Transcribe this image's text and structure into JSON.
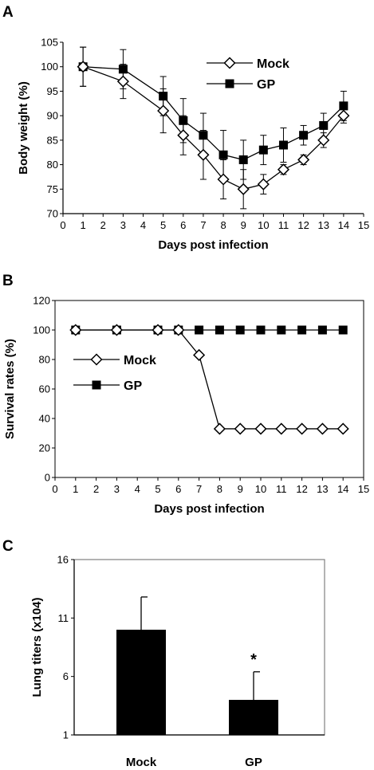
{
  "chart_data": [
    {
      "panel": "A",
      "type": "line",
      "xlabel": "Days post infection",
      "ylabel": "Body weight (%)",
      "xlim": [
        0,
        15
      ],
      "ylim": [
        70,
        105
      ],
      "xticks": [
        0,
        1,
        2,
        3,
        4,
        5,
        6,
        7,
        8,
        9,
        10,
        11,
        12,
        13,
        14,
        15
      ],
      "yticks": [
        70,
        75,
        80,
        85,
        90,
        95,
        100,
        105
      ],
      "legend_position": "top-right",
      "series": [
        {
          "name": "Mock",
          "marker": "open-diamond",
          "x": [
            1,
            3,
            5,
            6,
            7,
            8,
            9,
            10,
            11,
            12,
            13,
            14
          ],
          "y": [
            100,
            97,
            91,
            86,
            82,
            77,
            75,
            76,
            79,
            81,
            85,
            90
          ],
          "error": [
            4,
            3.5,
            4.5,
            4,
            5,
            4,
            4,
            2,
            1,
            1,
            1.5,
            1.5
          ]
        },
        {
          "name": "GP",
          "marker": "filled-square",
          "x": [
            1,
            3,
            5,
            6,
            7,
            8,
            9,
            10,
            11,
            12,
            13,
            14
          ],
          "y": [
            100,
            99.5,
            94,
            89,
            86,
            82,
            81,
            83,
            84,
            86,
            88,
            92
          ],
          "error": [
            4,
            4,
            4,
            4.5,
            4.5,
            5,
            4,
            3,
            3.5,
            2,
            2.5,
            3
          ]
        }
      ]
    },
    {
      "panel": "B",
      "type": "line",
      "xlabel": "Days post infection",
      "ylabel": "Survival rates (%)",
      "xlim": [
        0,
        15
      ],
      "ylim": [
        0,
        120
      ],
      "xticks": [
        0,
        1,
        2,
        3,
        4,
        5,
        6,
        7,
        8,
        9,
        10,
        11,
        12,
        13,
        14,
        15
      ],
      "yticks": [
        0,
        20,
        40,
        60,
        80,
        100,
        120
      ],
      "legend_position": "center-left",
      "series": [
        {
          "name": "Mock",
          "marker": "open-diamond",
          "x": [
            1,
            3,
            5,
            6,
            7,
            8,
            9,
            10,
            11,
            12,
            13,
            14
          ],
          "y": [
            100,
            100,
            100,
            100,
            83,
            33,
            33,
            33,
            33,
            33,
            33,
            33
          ]
        },
        {
          "name": "GP",
          "marker": "filled-square",
          "x": [
            1,
            3,
            5,
            6,
            7,
            8,
            9,
            10,
            11,
            12,
            13,
            14
          ],
          "y": [
            100,
            100,
            100,
            100,
            100,
            100,
            100,
            100,
            100,
            100,
            100,
            100
          ]
        }
      ]
    },
    {
      "panel": "C",
      "type": "bar",
      "ylabel": "Lung titers (x104)",
      "categories": [
        "Mock",
        "GP"
      ],
      "values": [
        10,
        4
      ],
      "errors": [
        2.8,
        2.4
      ],
      "ylim": [
        1,
        16
      ],
      "yticks": [
        1,
        6,
        11,
        16
      ],
      "annotation": "*",
      "annotation_category": "GP"
    }
  ]
}
